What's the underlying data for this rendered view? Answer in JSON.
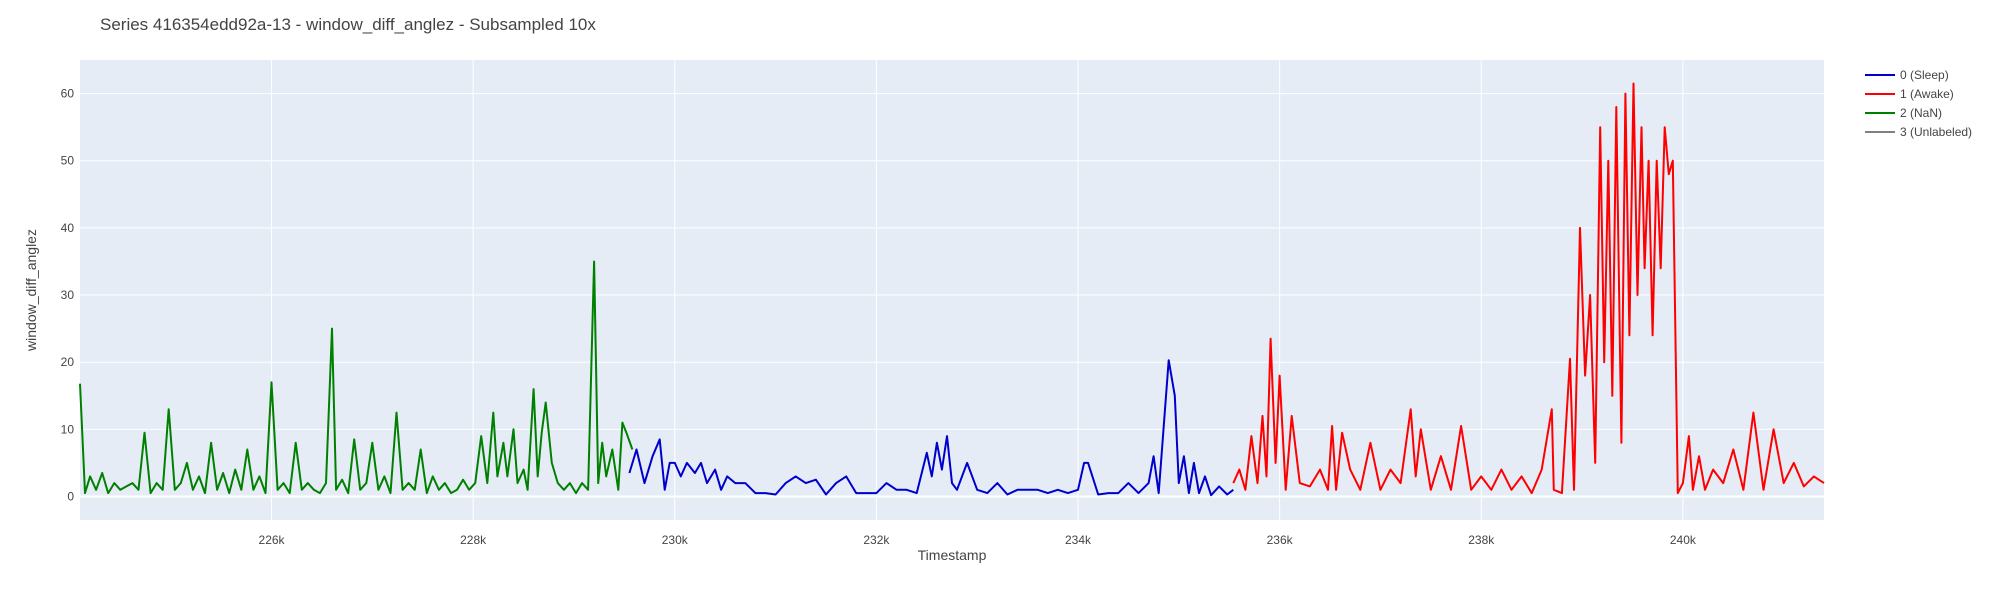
{
  "chart_data": {
    "type": "line",
    "title": "Series 416354edd92a-13 - window_diff_anglez - Subsampled 10x",
    "xlabel": "Timestamp",
    "ylabel": "window_diff_anglez",
    "xlim": [
      224100,
      241400
    ],
    "ylim": [
      -3.5,
      65
    ],
    "x_ticks": [
      226000,
      228000,
      230000,
      232000,
      234000,
      236000,
      238000,
      240000
    ],
    "x_tick_labels": [
      "226k",
      "228k",
      "230k",
      "232k",
      "234k",
      "236k",
      "238k",
      "240k"
    ],
    "y_ticks": [
      0,
      10,
      20,
      30,
      40,
      50,
      60
    ],
    "y_tick_labels": [
      "0",
      "10",
      "20",
      "30",
      "40",
      "50",
      "60"
    ],
    "grid": true,
    "legend_position": "top-right",
    "plot_background": "#E5ECF6",
    "series": [
      {
        "name": "0 (Sleep)",
        "color": "#0000CD",
        "x": [
          229550,
          229620,
          229700,
          229780,
          229850,
          229900,
          229950,
          230000,
          230060,
          230120,
          230200,
          230260,
          230320,
          230400,
          230460,
          230520,
          230600,
          230700,
          230800,
          230900,
          231000,
          231100,
          231200,
          231300,
          231400,
          231500,
          231600,
          231700,
          231800,
          231900,
          232000,
          232100,
          232200,
          232300,
          232400,
          232500,
          232550,
          232600,
          232650,
          232700,
          232750,
          232800,
          232900,
          233000,
          233100,
          233200,
          233300,
          233400,
          233500,
          233600,
          233700,
          233800,
          233900,
          234000,
          234060,
          234100,
          234200,
          234300,
          234400,
          234500,
          234600,
          234700,
          234750,
          234800,
          234900,
          234960,
          235000,
          235050,
          235100,
          235150,
          235200,
          235260,
          235320,
          235400,
          235480,
          235540
        ],
        "y": [
          3.5,
          7.0,
          2.0,
          6.0,
          8.5,
          1.0,
          5.0,
          5.0,
          3.0,
          5.0,
          3.5,
          5.0,
          2.0,
          4.0,
          1.0,
          3.0,
          2.0,
          2.0,
          0.5,
          0.5,
          0.3,
          2.0,
          3.0,
          2.0,
          2.5,
          0.3,
          2.0,
          3.0,
          0.5,
          0.5,
          0.5,
          2.0,
          1.0,
          1.0,
          0.5,
          6.5,
          3.0,
          8.0,
          4.0,
          9.0,
          2.0,
          1.0,
          5.0,
          1.0,
          0.5,
          2.0,
          0.3,
          1.0,
          1.0,
          1.0,
          0.5,
          1.0,
          0.5,
          1.0,
          5.0,
          5.0,
          0.3,
          0.5,
          0.5,
          2.0,
          0.5,
          2.0,
          6.0,
          0.5,
          20.3,
          15.0,
          2.0,
          6.0,
          0.5,
          5.0,
          0.5,
          3.0,
          0.2,
          1.5,
          0.3,
          1.0
        ]
      },
      {
        "name": "1 (Awake)",
        "color": "#FF0000",
        "x": [
          235540,
          235600,
          235660,
          235720,
          235780,
          235830,
          235870,
          235910,
          235960,
          236000,
          236060,
          236120,
          236200,
          236300,
          236400,
          236480,
          236520,
          236560,
          236620,
          236700,
          236800,
          236900,
          237000,
          237100,
          237200,
          237300,
          237350,
          237400,
          237500,
          237600,
          237700,
          237800,
          237900,
          238000,
          238100,
          238200,
          238300,
          238400,
          238500,
          238600,
          238700,
          238720,
          238800,
          238880,
          238920,
          238980,
          239030,
          239080,
          239130,
          239180,
          239220,
          239260,
          239300,
          239340,
          239390,
          239430,
          239470,
          239510,
          239550,
          239590,
          239620,
          239660,
          239700,
          239740,
          239780,
          239820,
          239860,
          239900,
          239950,
          240000,
          240060,
          240100,
          240160,
          240220,
          240300,
          240400,
          240500,
          240600,
          240700,
          240800,
          240900,
          241000,
          241100,
          241200,
          241300,
          241400
        ],
        "y": [
          2.0,
          4.0,
          1.0,
          9.0,
          2.0,
          12.0,
          3.0,
          23.5,
          5.0,
          18.0,
          1.0,
          12.0,
          2.0,
          1.5,
          4.0,
          1.0,
          10.5,
          1.0,
          9.5,
          4.0,
          1.0,
          8.0,
          1.0,
          4.0,
          2.0,
          13.0,
          3.0,
          10.0,
          1.0,
          6.0,
          1.0,
          10.5,
          1.0,
          3.0,
          1.0,
          4.0,
          1.0,
          3.0,
          0.5,
          4.0,
          13.0,
          1.0,
          0.5,
          20.5,
          1.0,
          40.0,
          18.0,
          30.0,
          5.0,
          55.0,
          20.0,
          50.0,
          15.0,
          58.0,
          8.0,
          60.0,
          24.0,
          61.5,
          30.0,
          55.0,
          34.0,
          50.0,
          24.0,
          50.0,
          34.0,
          55.0,
          48.0,
          50.0,
          0.5,
          2.0,
          9.0,
          1.0,
          6.0,
          1.0,
          4.0,
          2.0,
          7.0,
          1.0,
          12.5,
          1.0,
          10.0,
          2.0,
          5.0,
          1.5,
          3.0,
          2.0
        ]
      },
      {
        "name": "2 (NaN)",
        "color": "#008000",
        "x": [
          224100,
          224150,
          224200,
          224260,
          224320,
          224380,
          224440,
          224500,
          224560,
          224620,
          224680,
          224740,
          224800,
          224860,
          224920,
          224980,
          225040,
          225100,
          225160,
          225220,
          225280,
          225340,
          225400,
          225460,
          225520,
          225580,
          225640,
          225700,
          225760,
          225820,
          225880,
          225940,
          226000,
          226060,
          226120,
          226180,
          226240,
          226300,
          226360,
          226420,
          226480,
          226540,
          226600,
          226640,
          226700,
          226760,
          226820,
          226880,
          226940,
          227000,
          227060,
          227120,
          227180,
          227240,
          227300,
          227360,
          227420,
          227480,
          227540,
          227600,
          227660,
          227720,
          227780,
          227840,
          227900,
          227960,
          228020,
          228080,
          228140,
          228200,
          228240,
          228300,
          228340,
          228400,
          228440,
          228500,
          228540,
          228600,
          228640,
          228680,
          228720,
          228780,
          228840,
          228900,
          228960,
          229020,
          229080,
          229140,
          229200,
          229240,
          229280,
          229320,
          229380,
          229440,
          229480,
          229520,
          229580
        ],
        "y": [
          16.8,
          0.5,
          3.0,
          1.0,
          3.5,
          0.5,
          2.0,
          1.0,
          1.5,
          2.0,
          1.0,
          9.5,
          0.5,
          2.0,
          1.0,
          13.0,
          1.0,
          2.0,
          5.0,
          1.0,
          3.0,
          0.5,
          8.0,
          1.0,
          3.5,
          0.5,
          4.0,
          1.0,
          7.0,
          1.0,
          3.0,
          0.5,
          17.0,
          1.0,
          2.0,
          0.5,
          8.0,
          1.0,
          2.0,
          1.0,
          0.5,
          2.0,
          25.0,
          1.0,
          2.5,
          0.5,
          8.5,
          1.0,
          2.0,
          8.0,
          1.0,
          3.0,
          0.5,
          12.5,
          1.0,
          2.0,
          1.0,
          7.0,
          0.5,
          3.0,
          1.0,
          2.0,
          0.5,
          1.0,
          2.5,
          1.0,
          2.0,
          9.0,
          2.0,
          12.5,
          3.0,
          8.0,
          3.0,
          10.0,
          2.0,
          4.0,
          1.0,
          16.0,
          3.0,
          9.5,
          14.0,
          5.0,
          2.0,
          1.0,
          2.0,
          0.5,
          2.0,
          1.0,
          35.0,
          2.0,
          8.0,
          3.0,
          7.0,
          1.0,
          11.0,
          9.5,
          7.0
        ]
      },
      {
        "name": "3 (Unlabeled)",
        "color": "#808080",
        "x": [],
        "y": []
      }
    ]
  }
}
